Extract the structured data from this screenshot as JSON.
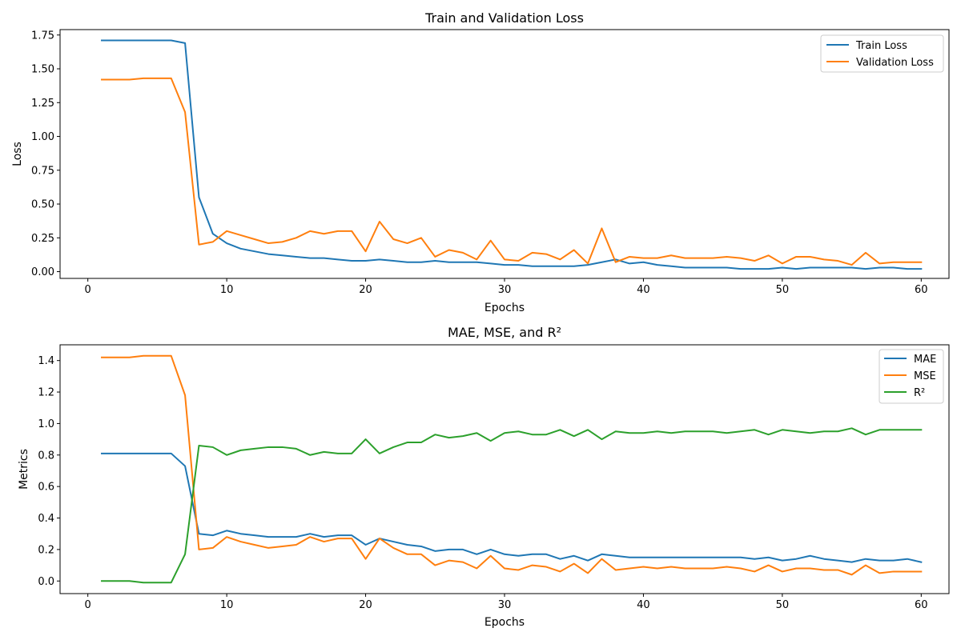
{
  "chart_data": [
    {
      "type": "line",
      "title": "Train and Validation Loss",
      "xlabel": "Epochs",
      "ylabel": "Loss",
      "xlim": [
        -2,
        62
      ],
      "ylim": [
        -0.05,
        1.79
      ],
      "xticks": [
        0,
        10,
        20,
        30,
        40,
        50,
        60
      ],
      "xtick_labels": [
        "0",
        "10",
        "20",
        "30",
        "40",
        "50",
        "60"
      ],
      "yticks": [
        0,
        0.25,
        0.5,
        0.75,
        1.0,
        1.25,
        1.5,
        1.75
      ],
      "ytick_labels": [
        "0.00",
        "0.25",
        "0.50",
        "0.75",
        "1.00",
        "1.25",
        "1.50",
        "1.75"
      ],
      "legend_position": "upper right",
      "grid": false,
      "x": [
        1,
        2,
        3,
        4,
        5,
        6,
        7,
        8,
        9,
        10,
        11,
        12,
        13,
        14,
        15,
        16,
        17,
        18,
        19,
        20,
        21,
        22,
        23,
        24,
        25,
        26,
        27,
        28,
        29,
        30,
        31,
        32,
        33,
        34,
        35,
        36,
        37,
        38,
        39,
        40,
        41,
        42,
        43,
        44,
        45,
        46,
        47,
        48,
        49,
        50,
        51,
        52,
        53,
        54,
        55,
        56,
        57,
        58,
        59,
        60
      ],
      "series": [
        {
          "name": "Train Loss",
          "color": "#1f77b4",
          "values": [
            1.71,
            1.71,
            1.71,
            1.71,
            1.71,
            1.71,
            1.69,
            0.55,
            0.28,
            0.21,
            0.17,
            0.15,
            0.13,
            0.12,
            0.11,
            0.1,
            0.1,
            0.09,
            0.08,
            0.08,
            0.09,
            0.08,
            0.07,
            0.07,
            0.08,
            0.07,
            0.07,
            0.07,
            0.06,
            0.05,
            0.05,
            0.04,
            0.04,
            0.04,
            0.04,
            0.05,
            0.07,
            0.09,
            0.06,
            0.07,
            0.05,
            0.04,
            0.03,
            0.03,
            0.03,
            0.03,
            0.02,
            0.02,
            0.02,
            0.03,
            0.02,
            0.03,
            0.03,
            0.03,
            0.03,
            0.02,
            0.03,
            0.03,
            0.02,
            0.02
          ]
        },
        {
          "name": "Validation Loss",
          "color": "#ff7f0e",
          "values": [
            1.42,
            1.42,
            1.42,
            1.43,
            1.43,
            1.43,
            1.18,
            0.2,
            0.22,
            0.3,
            0.27,
            0.24,
            0.21,
            0.22,
            0.25,
            0.3,
            0.28,
            0.3,
            0.3,
            0.15,
            0.37,
            0.24,
            0.21,
            0.25,
            0.11,
            0.16,
            0.14,
            0.09,
            0.23,
            0.09,
            0.08,
            0.14,
            0.13,
            0.09,
            0.16,
            0.06,
            0.32,
            0.07,
            0.11,
            0.1,
            0.1,
            0.12,
            0.1,
            0.1,
            0.1,
            0.11,
            0.1,
            0.08,
            0.12,
            0.06,
            0.11,
            0.11,
            0.09,
            0.08,
            0.05,
            0.14,
            0.06,
            0.07,
            0.07,
            0.07
          ]
        }
      ]
    },
    {
      "type": "line",
      "title": "MAE, MSE, and R²",
      "xlabel": "Epochs",
      "ylabel": "Metrics",
      "xlim": [
        -2,
        62
      ],
      "ylim": [
        -0.08,
        1.5
      ],
      "xticks": [
        0,
        10,
        20,
        30,
        40,
        50,
        60
      ],
      "xtick_labels": [
        "0",
        "10",
        "20",
        "30",
        "40",
        "50",
        "60"
      ],
      "yticks": [
        0,
        0.2,
        0.4,
        0.6,
        0.8,
        1.0,
        1.2,
        1.4
      ],
      "ytick_labels": [
        "0.0",
        "0.2",
        "0.4",
        "0.6",
        "0.8",
        "1.0",
        "1.2",
        "1.4"
      ],
      "legend_position": "upper right",
      "grid": false,
      "x": [
        1,
        2,
        3,
        4,
        5,
        6,
        7,
        8,
        9,
        10,
        11,
        12,
        13,
        14,
        15,
        16,
        17,
        18,
        19,
        20,
        21,
        22,
        23,
        24,
        25,
        26,
        27,
        28,
        29,
        30,
        31,
        32,
        33,
        34,
        35,
        36,
        37,
        38,
        39,
        40,
        41,
        42,
        43,
        44,
        45,
        46,
        47,
        48,
        49,
        50,
        51,
        52,
        53,
        54,
        55,
        56,
        57,
        58,
        59,
        60
      ],
      "series": [
        {
          "name": "MAE",
          "color": "#1f77b4",
          "values": [
            0.81,
            0.81,
            0.81,
            0.81,
            0.81,
            0.81,
            0.73,
            0.3,
            0.29,
            0.32,
            0.3,
            0.29,
            0.28,
            0.28,
            0.28,
            0.3,
            0.28,
            0.29,
            0.29,
            0.23,
            0.27,
            0.25,
            0.23,
            0.22,
            0.19,
            0.2,
            0.2,
            0.17,
            0.2,
            0.17,
            0.16,
            0.17,
            0.17,
            0.14,
            0.16,
            0.13,
            0.17,
            0.16,
            0.15,
            0.15,
            0.15,
            0.15,
            0.15,
            0.15,
            0.15,
            0.15,
            0.15,
            0.14,
            0.15,
            0.13,
            0.14,
            0.16,
            0.14,
            0.13,
            0.12,
            0.14,
            0.13,
            0.13,
            0.14,
            0.12
          ]
        },
        {
          "name": "MSE",
          "color": "#ff7f0e",
          "values": [
            1.42,
            1.42,
            1.42,
            1.43,
            1.43,
            1.43,
            1.18,
            0.2,
            0.21,
            0.28,
            0.25,
            0.23,
            0.21,
            0.22,
            0.23,
            0.28,
            0.25,
            0.27,
            0.27,
            0.14,
            0.27,
            0.21,
            0.17,
            0.17,
            0.1,
            0.13,
            0.12,
            0.08,
            0.16,
            0.08,
            0.07,
            0.1,
            0.09,
            0.06,
            0.11,
            0.05,
            0.14,
            0.07,
            0.08,
            0.09,
            0.08,
            0.09,
            0.08,
            0.08,
            0.08,
            0.09,
            0.08,
            0.06,
            0.1,
            0.06,
            0.08,
            0.08,
            0.07,
            0.07,
            0.04,
            0.1,
            0.05,
            0.06,
            0.06,
            0.06
          ]
        },
        {
          "name": "R²",
          "color": "#2ca02c",
          "values": [
            0.0,
            0.0,
            0.0,
            -0.01,
            -0.01,
            -0.01,
            0.17,
            0.86,
            0.85,
            0.8,
            0.83,
            0.84,
            0.85,
            0.85,
            0.84,
            0.8,
            0.82,
            0.81,
            0.81,
            0.9,
            0.81,
            0.85,
            0.88,
            0.88,
            0.93,
            0.91,
            0.92,
            0.94,
            0.89,
            0.94,
            0.95,
            0.93,
            0.93,
            0.96,
            0.92,
            0.96,
            0.9,
            0.95,
            0.94,
            0.94,
            0.95,
            0.94,
            0.95,
            0.95,
            0.95,
            0.94,
            0.95,
            0.96,
            0.93,
            0.96,
            0.95,
            0.94,
            0.95,
            0.95,
            0.97,
            0.93,
            0.96,
            0.96,
            0.96,
            0.96
          ]
        }
      ]
    }
  ]
}
